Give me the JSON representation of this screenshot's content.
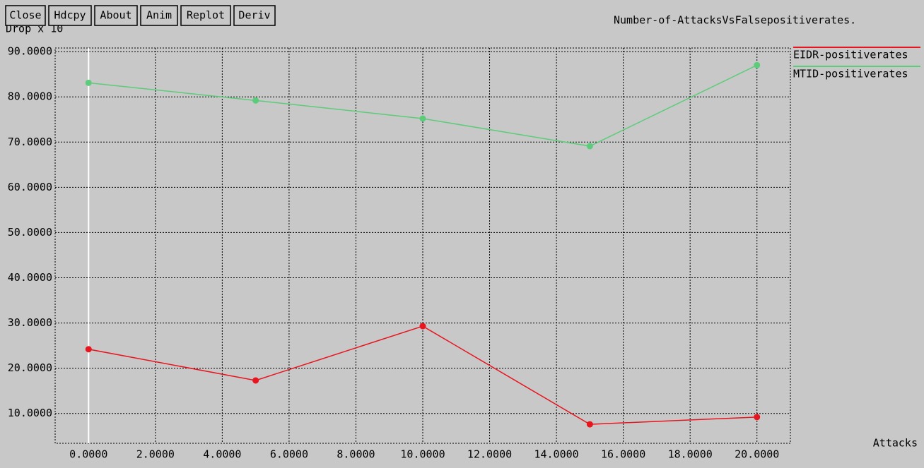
{
  "toolbar": {
    "buttons": [
      "Close",
      "Hdcpy",
      "About",
      "Anim",
      "Replot",
      "Deriv"
    ]
  },
  "chart_data": {
    "type": "line",
    "title": "Number-of-AttacksVsFalsepositiverates.",
    "y_label": "Drop x 10",
    "x_label": "Attacks",
    "x": [
      0,
      5,
      10,
      15,
      20
    ],
    "series": [
      {
        "name": "EIDR-positiverates",
        "color": "#e8141e",
        "values": [
          24.2,
          17.3,
          29.3,
          7.6,
          9.2
        ]
      },
      {
        "name": "MTID-positiverates",
        "color": "#5ccc7a",
        "values": [
          83.1,
          79.2,
          75.2,
          69.1,
          87.0
        ]
      }
    ],
    "xlim": [
      -1,
      21
    ],
    "ylim": [
      3.4,
      90.8
    ],
    "xticks": [
      {
        "value": 0,
        "label": "0.0000"
      },
      {
        "value": 2,
        "label": "2.0000"
      },
      {
        "value": 4,
        "label": "4.0000"
      },
      {
        "value": 6,
        "label": "6.0000"
      },
      {
        "value": 8,
        "label": "8.0000"
      },
      {
        "value": 10,
        "label": "10.0000"
      },
      {
        "value": 12,
        "label": "12.0000"
      },
      {
        "value": 14,
        "label": "14.0000"
      },
      {
        "value": 16,
        "label": "16.0000"
      },
      {
        "value": 18,
        "label": "18.0000"
      },
      {
        "value": 20,
        "label": "20.0000"
      }
    ],
    "yticks": [
      {
        "value": 10,
        "label": "10.0000"
      },
      {
        "value": 20,
        "label": "20.0000"
      },
      {
        "value": 30,
        "label": "30.0000"
      },
      {
        "value": 40,
        "label": "40.0000"
      },
      {
        "value": 50,
        "label": "50.0000"
      },
      {
        "value": 60,
        "label": "60.0000"
      },
      {
        "value": 70,
        "label": "70.0000"
      },
      {
        "value": 80,
        "label": "80.0000"
      },
      {
        "value": 90,
        "label": "90.0000"
      }
    ],
    "grid": true,
    "legend": "right"
  }
}
